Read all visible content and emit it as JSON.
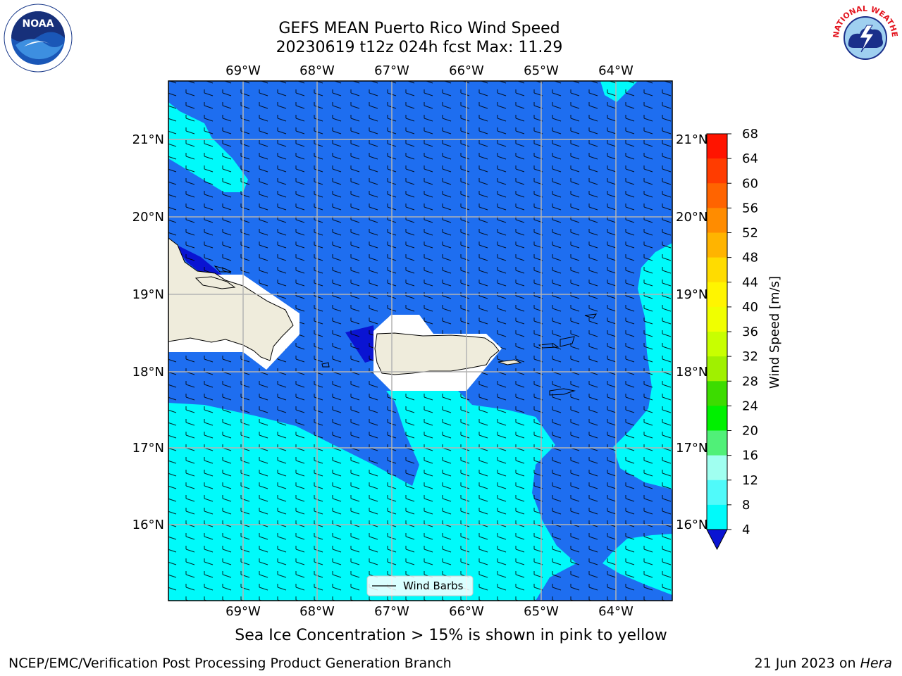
{
  "header": {
    "title_line1": "GEFS MEAN Puerto Rico Wind Speed",
    "title_line2": "20230619 t12z 024h fcst   Max: 11.29"
  },
  "map": {
    "longitude_ticks": [
      "69°W",
      "68°W",
      "67°W",
      "66°W",
      "65°W",
      "64°W"
    ],
    "latitude_ticks": [
      "21°N",
      "20°N",
      "19°N",
      "18°N",
      "17°N",
      "16°N"
    ],
    "legend_label": "Wind Barbs",
    "colors": {
      "ocean_base": "#1e6ef0",
      "calm_patch": "#0a14d2",
      "wind_8_12": "#00fafa",
      "land": "#efecdc",
      "grid": "#b4b4b4"
    }
  },
  "colorbar": {
    "label": "Wind Speed [m/s]",
    "ticks": [
      "68",
      "64",
      "60",
      "56",
      "52",
      "48",
      "44",
      "40",
      "36",
      "32",
      "28",
      "24",
      "20",
      "16",
      "12",
      "8",
      "4"
    ],
    "colors": [
      "#ff1400",
      "#ff3c00",
      "#ff6400",
      "#ff8c00",
      "#ffb400",
      "#ffdc00",
      "#fff500",
      "#f0ff00",
      "#c8ff00",
      "#a0f000",
      "#3cdc00",
      "#00f000",
      "#50f078",
      "#a0fff0",
      "#50fafa",
      "#00fafa",
      "#1e6ef0"
    ],
    "under_color": "#0a14d2"
  },
  "caption": "Sea Ice Concentration > 15% is shown in pink to yellow",
  "footer": {
    "left": "NCEP/EMC/Verification Post Processing Product Generation Branch",
    "date": "21 Jun 2023 on ",
    "machine": "Hera"
  },
  "logos": {
    "noaa_text": "NOAA",
    "nws_text": "NATIONAL WEATHER SERVICE"
  }
}
